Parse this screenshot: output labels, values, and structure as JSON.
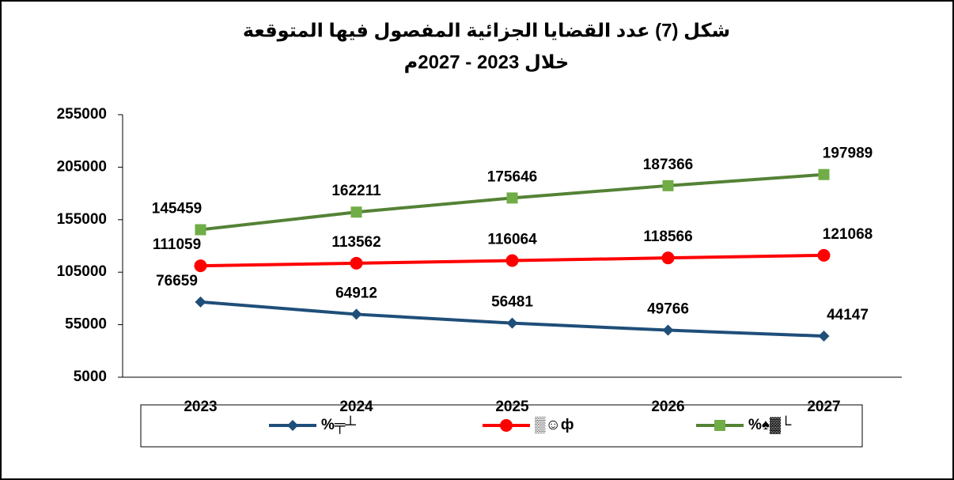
{
  "chart_data": {
    "type": "line",
    "title": "شكل (7) عدد القضايا الجزائية المفصول فيها المتوقعة",
    "subtitle": "خلال 2023 - 2027م",
    "categories": [
      "2023",
      "2024",
      "2025",
      "2026",
      "2027"
    ],
    "series": [
      {
        "name": "%╤┴",
        "color": "#1f4e79",
        "marker": "diamond",
        "values": [
          76659,
          64912,
          56481,
          49766,
          44147
        ]
      },
      {
        "name": "▒☺ф",
        "color": "#ff0000",
        "marker": "circle",
        "values": [
          111059,
          113562,
          116064,
          118566,
          121068
        ]
      },
      {
        "name": "%♠▓└",
        "color": "#548235",
        "marker": "square",
        "values": [
          145459,
          162211,
          175646,
          187366,
          197989
        ]
      }
    ],
    "ylim": [
      5000,
      255000
    ],
    "yticks": [
      5000,
      55000,
      105000,
      155000,
      205000,
      255000
    ],
    "grid": false,
    "legend": "bottom"
  }
}
